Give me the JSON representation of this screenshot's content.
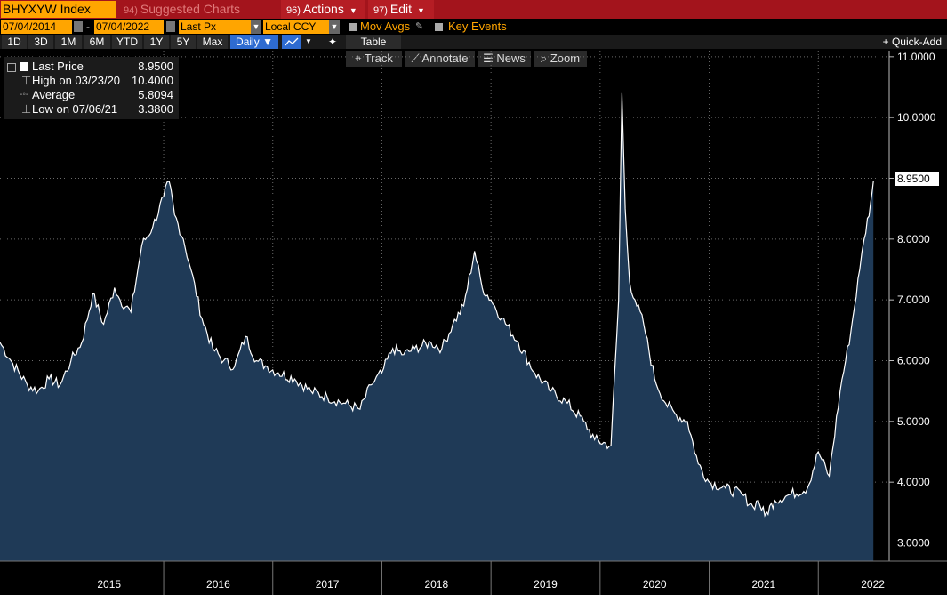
{
  "header": {
    "ticker": "BHYXYW Index",
    "suggested_num": "94)",
    "suggested_label": "Suggested Charts",
    "actions_num": "96)",
    "actions_label": "Actions",
    "edit_num": "97)",
    "edit_label": "Edit"
  },
  "controls": {
    "start_date": "07/04/2014",
    "end_date": "07/04/2022",
    "field": "Last Px",
    "currency": "Local CCY",
    "mov_avgs": "Mov Avgs",
    "key_events": "Key Events",
    "periods": [
      "1D",
      "3D",
      "1M",
      "6M",
      "YTD",
      "1Y",
      "5Y",
      "Max"
    ],
    "frequency": "Daily",
    "table": "Table",
    "quick_add": "Quick-Add"
  },
  "chart_tools": {
    "track": "Track",
    "annotate": "Annotate",
    "news": "News",
    "zoom": "Zoom"
  },
  "legend": {
    "last_label": "Last Price",
    "last_value": "8.9500",
    "high_label": "High on 03/23/20",
    "high_value": "10.4000",
    "avg_label": "Average",
    "avg_value": "5.8094",
    "low_label": "Low on 07/06/21",
    "low_value": "3.3800"
  },
  "colors": {
    "area_fill": "#1f3a57",
    "line": "#ffffff",
    "accent_orange": "#ffa500",
    "header_red": "#a3141c"
  },
  "chart_data": {
    "type": "area",
    "ylim": [
      2.7,
      11.1
    ],
    "yticks": [
      "11.0000",
      "10.0000",
      "9.0000",
      "8.0000",
      "7.0000",
      "6.0000",
      "5.0000",
      "4.0000",
      "3.0000"
    ],
    "xlabels": [
      "2015",
      "2016",
      "2017",
      "2018",
      "2019",
      "2020",
      "2021",
      "2022"
    ],
    "last_value_label": "8.9500",
    "series": [
      {
        "x": [
          2014.5,
          2014.6,
          2014.75,
          2014.85,
          2014.95,
          2015.05,
          2015.15,
          2015.25,
          2015.35,
          2015.45,
          2015.55,
          2015.6,
          2015.7,
          2015.8,
          2015.9,
          2016.0,
          2016.05,
          2016.1,
          2016.18,
          2016.25,
          2016.35,
          2016.45,
          2016.55,
          2016.65,
          2016.75,
          2016.85,
          2016.95,
          2017.05,
          2017.2,
          2017.35,
          2017.5,
          2017.65,
          2017.8,
          2017.9,
          2018.0,
          2018.1,
          2018.2,
          2018.3,
          2018.45,
          2018.55,
          2018.65,
          2018.75,
          2018.85,
          2018.92,
          2019.0,
          2019.1,
          2019.25,
          2019.4,
          2019.55,
          2019.7,
          2019.85,
          2019.95,
          2020.1,
          2020.17,
          2020.2,
          2020.23,
          2020.27,
          2020.32,
          2020.4,
          2020.5,
          2020.6,
          2020.7,
          2020.8,
          2020.9,
          2021.0,
          2021.15,
          2021.3,
          2021.4,
          2021.45,
          2021.51,
          2021.6,
          2021.75,
          2021.9,
          2022.0,
          2022.1,
          2022.2,
          2022.3,
          2022.38,
          2022.42,
          2022.48,
          2022.505
        ],
        "y": [
          6.3,
          6.0,
          5.6,
          5.5,
          5.7,
          5.6,
          6.0,
          6.3,
          7.1,
          6.6,
          7.2,
          7.0,
          6.8,
          7.9,
          8.2,
          8.7,
          8.95,
          8.4,
          8.0,
          7.5,
          6.7,
          6.2,
          6.0,
          5.9,
          6.4,
          6.0,
          5.9,
          5.8,
          5.7,
          5.5,
          5.4,
          5.3,
          5.2,
          5.6,
          5.8,
          6.2,
          6.1,
          6.2,
          6.3,
          6.2,
          6.6,
          6.9,
          7.8,
          7.2,
          7.0,
          6.7,
          6.3,
          5.8,
          5.5,
          5.3,
          5.0,
          4.7,
          4.6,
          7.0,
          10.4,
          8.5,
          7.3,
          7.0,
          6.6,
          5.7,
          5.3,
          5.1,
          5.0,
          4.3,
          4.0,
          3.9,
          3.8,
          3.6,
          3.7,
          3.45,
          3.7,
          3.8,
          3.9,
          4.5,
          4.1,
          5.5,
          6.5,
          7.5,
          8.0,
          8.6,
          8.95
        ]
      }
    ]
  }
}
